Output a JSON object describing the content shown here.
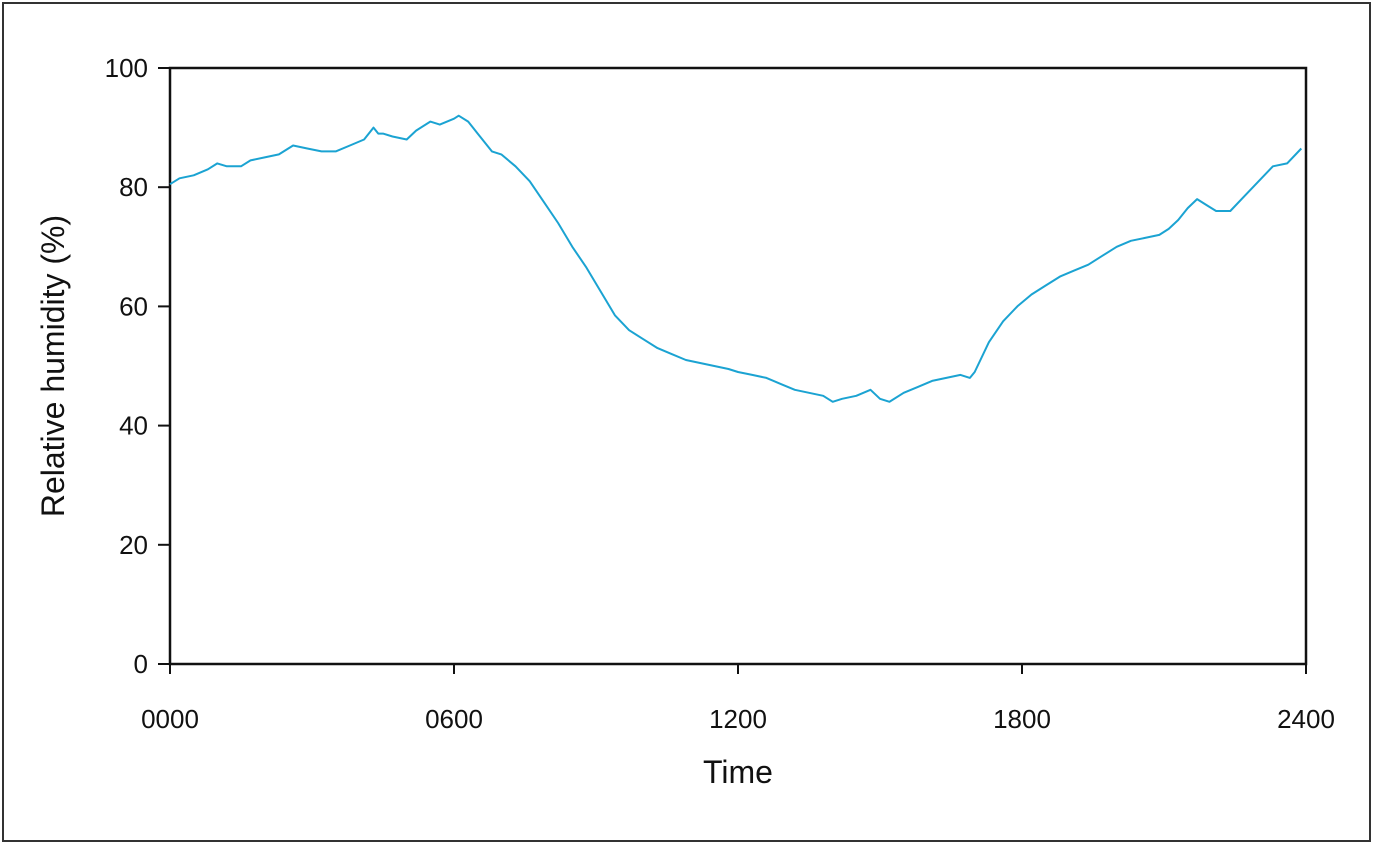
{
  "chart_data": {
    "type": "line",
    "xlabel": "Time",
    "ylabel": "Relative humidity (%)",
    "x_ticks": [
      "0000",
      "0600",
      "1200",
      "1800",
      "2400"
    ],
    "x_tick_values": [
      0,
      6,
      12,
      18,
      24
    ],
    "y_ticks": [
      "0",
      "20",
      "40",
      "60",
      "80",
      "100"
    ],
    "y_tick_values": [
      0,
      20,
      40,
      60,
      80,
      100
    ],
    "xlim": [
      0,
      24
    ],
    "ylim": [
      0,
      100
    ],
    "grid": false,
    "legend": "none",
    "line_color": "#1ba3d2",
    "series": [
      {
        "x": [
          0.0,
          0.2,
          0.5,
          0.8,
          1.0,
          1.2,
          1.5,
          1.7,
          2.0,
          2.3,
          2.6,
          2.9,
          3.2,
          3.5,
          3.8,
          4.1,
          4.3,
          4.4,
          4.5,
          4.7,
          5.0,
          5.2,
          5.5,
          5.7,
          6.0,
          6.1,
          6.3,
          6.5,
          6.8,
          7.0,
          7.3,
          7.6,
          7.9,
          8.2,
          8.5,
          8.8,
          9.1,
          9.4,
          9.7,
          10.0,
          10.3,
          10.6,
          10.9,
          11.2,
          11.5,
          11.8,
          12.0,
          12.3,
          12.6,
          12.9,
          13.2,
          13.5,
          13.8,
          14.0,
          14.2,
          14.5,
          14.8,
          15.0,
          15.2,
          15.5,
          15.8,
          16.1,
          16.4,
          16.7,
          16.9,
          17.0,
          17.3,
          17.6,
          17.9,
          18.2,
          18.5,
          18.8,
          19.1,
          19.4,
          19.7,
          20.0,
          20.3,
          20.6,
          20.9,
          21.1,
          21.3,
          21.5,
          21.7,
          21.9,
          22.1,
          22.4,
          22.7,
          23.0,
          23.3,
          23.6,
          23.9
        ],
        "y": [
          80.5,
          81.5,
          82.0,
          83.0,
          84.0,
          83.5,
          83.5,
          84.5,
          85.0,
          85.5,
          87.0,
          86.5,
          86.0,
          86.0,
          87.0,
          88.0,
          90.0,
          89.0,
          89.0,
          88.5,
          88.0,
          89.5,
          91.0,
          90.5,
          91.5,
          92.0,
          91.0,
          89.0,
          86.0,
          85.5,
          83.5,
          81.0,
          77.5,
          74.0,
          70.0,
          66.5,
          62.5,
          58.5,
          56.0,
          54.5,
          53.0,
          52.0,
          51.0,
          50.5,
          50.0,
          49.5,
          49.0,
          48.5,
          48.0,
          47.0,
          46.0,
          45.5,
          45.0,
          44.0,
          44.5,
          45.0,
          46.0,
          44.5,
          44.0,
          45.5,
          46.5,
          47.5,
          48.0,
          48.5,
          48.0,
          49.0,
          54.0,
          57.5,
          60.0,
          62.0,
          63.5,
          65.0,
          66.0,
          67.0,
          68.5,
          70.0,
          71.0,
          71.5,
          72.0,
          73.0,
          74.5,
          76.5,
          78.0,
          77.0,
          76.0,
          76.0,
          78.5,
          81.0,
          83.5,
          84.0,
          86.5
        ]
      }
    ]
  }
}
